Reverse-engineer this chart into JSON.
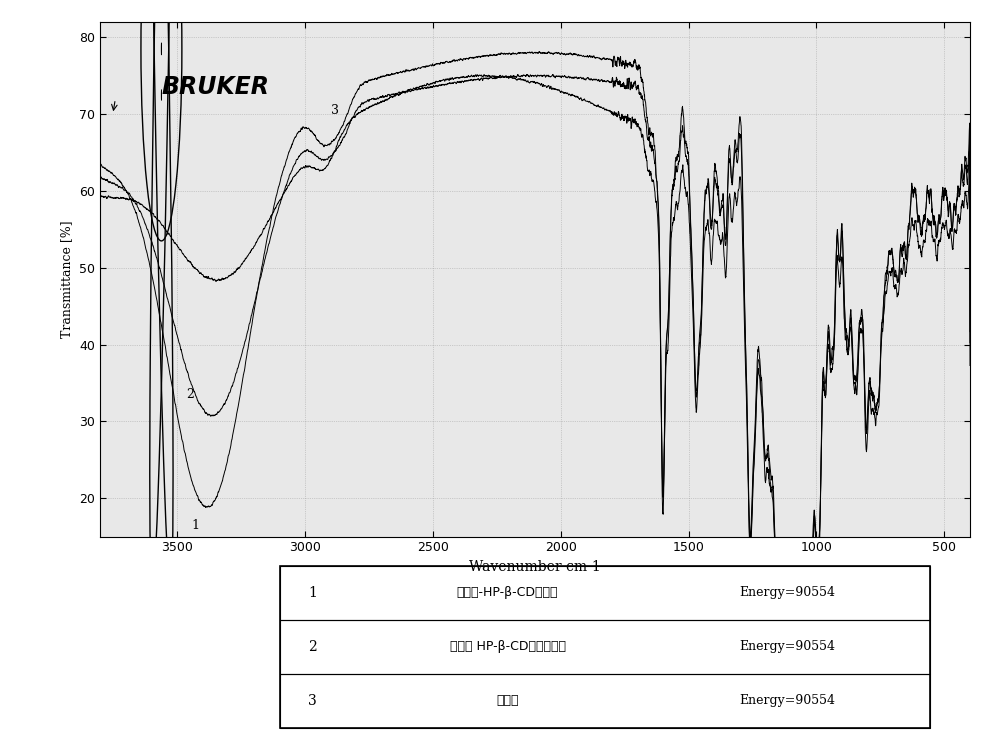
{
  "title": "",
  "xlabel": "Wavenumber cm-1",
  "ylabel": "Transmittance [%]",
  "xlim": [
    3800,
    400
  ],
  "ylim": [
    15,
    82
  ],
  "yticks": [
    20,
    30,
    40,
    50,
    60,
    70,
    80
  ],
  "xticks": [
    3500,
    3000,
    2500,
    2000,
    1500,
    1000,
    500
  ],
  "background_color": "#ffffff",
  "plot_bg_color": "#e8e8e8",
  "line_color": "#000000",
  "legend_entries": [
    {
      "num": "1",
      "label": "甘草素-HP-β-CD包合物",
      "energy": "Energy=90554"
    },
    {
      "num": "2",
      "label": "甘草素 HP-β-CD物理混合物",
      "energy": "Energy=90554"
    },
    {
      "num": "3",
      "label": "甘草素",
      "energy": "Energy=90554"
    }
  ],
  "bruker_text": "BRUKER"
}
